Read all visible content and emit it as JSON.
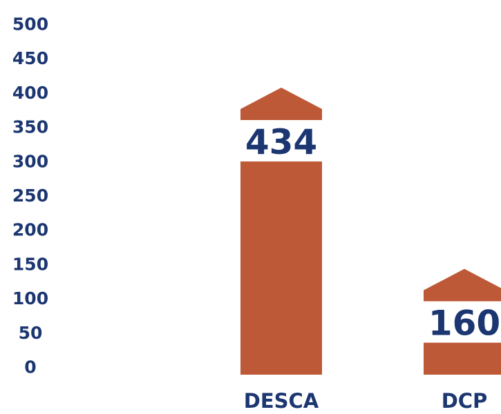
{
  "colors": {
    "bar": "#bd5937",
    "text": "#1c3671",
    "background": "#ffffff"
  },
  "chart_data": {
    "type": "bar",
    "categories": [
      "DESCA",
      "DCP"
    ],
    "values": [
      434,
      160
    ],
    "data_labels": [
      "434",
      "160"
    ],
    "title": "",
    "xlabel": "",
    "ylabel": "",
    "y_ticks": [
      0,
      50,
      100,
      150,
      200,
      250,
      300,
      350,
      400,
      450,
      500
    ],
    "ylim": [
      0,
      500
    ],
    "grid": false,
    "legend": "none",
    "bar_style": "house-shaped bars with a gap under the roof containing the value label"
  }
}
